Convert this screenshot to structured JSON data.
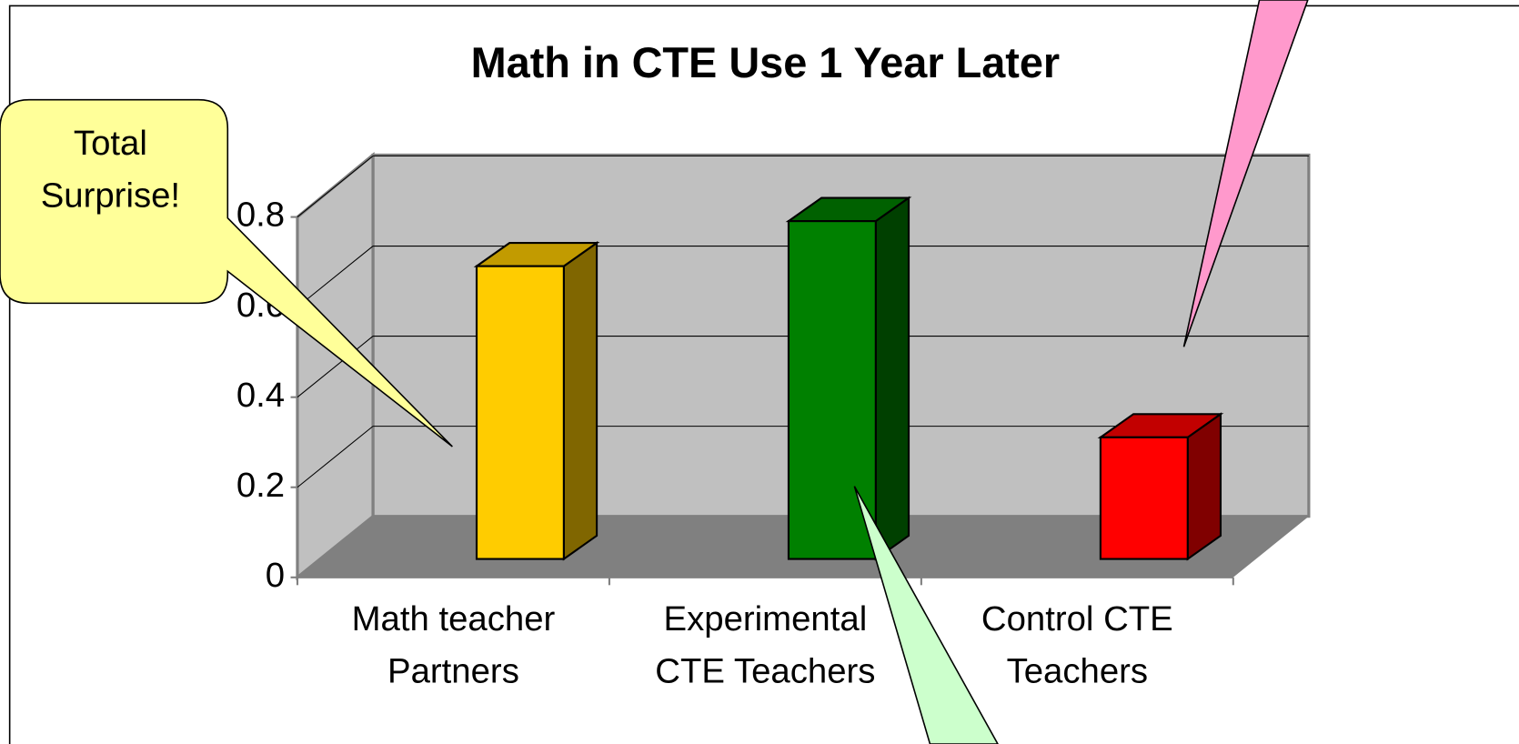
{
  "chart_data": {
    "type": "bar3d",
    "title": "Math in CTE Use 1 Year Later",
    "categories": [
      [
        "Math teacher",
        "Partners"
      ],
      [
        "Experimental",
        "CTE Teachers"
      ],
      [
        "Control CTE",
        "Teachers"
      ]
    ],
    "values": [
      0.65,
      0.75,
      0.27
    ],
    "colors": [
      "#ffcc00",
      "#008000",
      "#ff0000"
    ],
    "ylim": [
      0,
      0.8
    ],
    "yticks": [
      0,
      0.2,
      0.4,
      0.6,
      0.8
    ],
    "grid": true,
    "annotations": [
      {
        "text": [
          "Total",
          "Surprise!"
        ]
      }
    ]
  }
}
